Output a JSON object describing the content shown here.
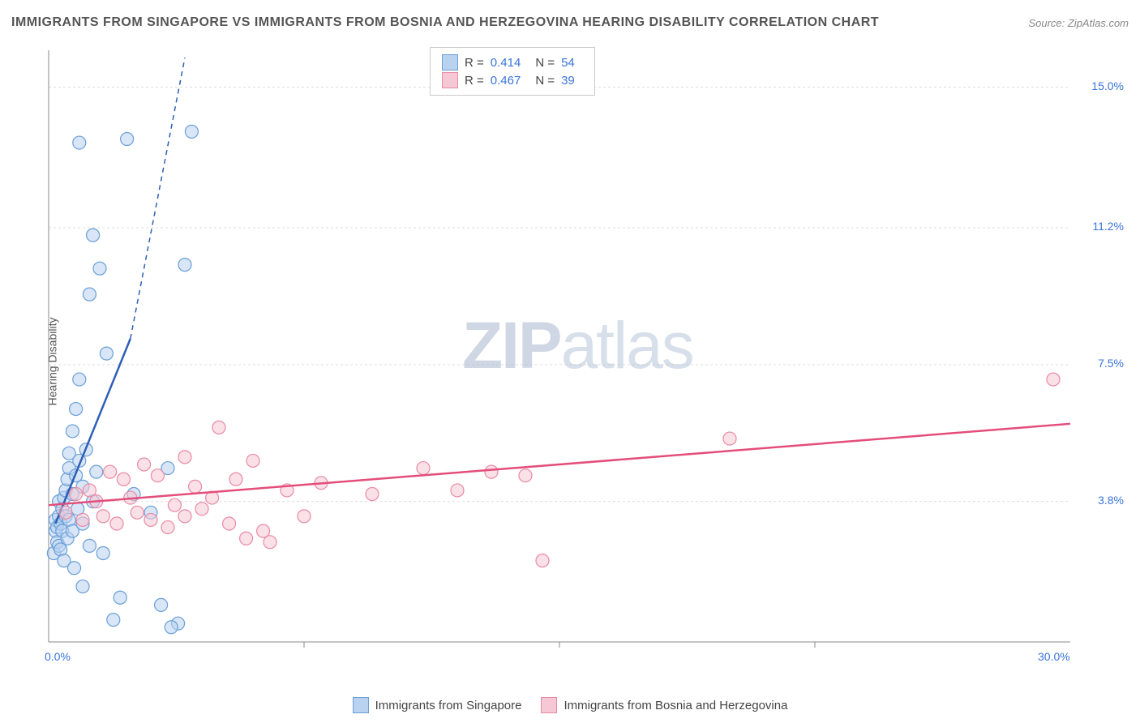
{
  "title": "IMMIGRANTS FROM SINGAPORE VS IMMIGRANTS FROM BOSNIA AND HERZEGOVINA HEARING DISABILITY CORRELATION CHART",
  "source": "Source: ZipAtlas.com",
  "y_axis_label": "Hearing Disability",
  "watermark_bold": "ZIP",
  "watermark_light": "atlas",
  "chart": {
    "type": "scatter",
    "background_color": "#ffffff",
    "grid_color": "#dddddd",
    "axis_color": "#888888",
    "xlim": [
      0,
      30
    ],
    "ylim": [
      0,
      16
    ],
    "y_ticks": [
      {
        "v": 3.8,
        "label": "3.8%"
      },
      {
        "v": 7.5,
        "label": "7.5%"
      },
      {
        "v": 11.2,
        "label": "11.2%"
      },
      {
        "v": 15.0,
        "label": "15.0%"
      }
    ],
    "x_ticks": [
      {
        "v": 0,
        "label": "0.0%"
      },
      {
        "v": 30,
        "label": "30.0%"
      }
    ],
    "x_minor_ticks": [
      7.5,
      15,
      22.5
    ],
    "marker_radius": 8,
    "marker_opacity": 0.55,
    "series": [
      {
        "name": "Immigrants from Singapore",
        "color_fill": "#b8d2f0",
        "color_stroke": "#6a9fd8",
        "line_color": "#2e5fb5",
        "r_label": "R =",
        "r_value": "0.414",
        "n_label": "N =",
        "n_value": "54",
        "trend": {
          "x1": 0.2,
          "y1": 3.2,
          "x2": 4.0,
          "y2": 15.8,
          "solid_to_x": 2.4,
          "solid_to_y": 8.2
        },
        "points": [
          [
            0.15,
            2.4
          ],
          [
            0.2,
            3.0
          ],
          [
            0.2,
            3.3
          ],
          [
            0.25,
            2.7
          ],
          [
            0.25,
            3.1
          ],
          [
            0.3,
            2.6
          ],
          [
            0.3,
            3.4
          ],
          [
            0.3,
            3.8
          ],
          [
            0.35,
            2.5
          ],
          [
            0.35,
            3.2
          ],
          [
            0.4,
            3.0
          ],
          [
            0.4,
            3.6
          ],
          [
            0.45,
            2.2
          ],
          [
            0.45,
            3.9
          ],
          [
            0.5,
            3.4
          ],
          [
            0.5,
            4.1
          ],
          [
            0.55,
            2.8
          ],
          [
            0.55,
            4.4
          ],
          [
            0.6,
            3.3
          ],
          [
            0.6,
            4.7
          ],
          [
            0.6,
            5.1
          ],
          [
            0.7,
            3.0
          ],
          [
            0.7,
            4.0
          ],
          [
            0.7,
            5.7
          ],
          [
            0.75,
            2.0
          ],
          [
            0.8,
            4.5
          ],
          [
            0.8,
            6.3
          ],
          [
            0.85,
            3.6
          ],
          [
            0.9,
            4.9
          ],
          [
            0.9,
            7.1
          ],
          [
            1.0,
            1.5
          ],
          [
            1.0,
            3.2
          ],
          [
            1.0,
            4.2
          ],
          [
            1.1,
            5.2
          ],
          [
            1.2,
            2.6
          ],
          [
            1.2,
            9.4
          ],
          [
            1.3,
            3.8
          ],
          [
            1.4,
            4.6
          ],
          [
            1.5,
            10.1
          ],
          [
            1.6,
            2.4
          ],
          [
            1.7,
            7.8
          ],
          [
            1.9,
            0.6
          ],
          [
            2.1,
            1.2
          ],
          [
            2.3,
            13.6
          ],
          [
            2.5,
            4.0
          ],
          [
            3.0,
            3.5
          ],
          [
            3.3,
            1.0
          ],
          [
            3.5,
            4.7
          ],
          [
            3.8,
            0.5
          ],
          [
            4.0,
            10.2
          ],
          [
            4.2,
            13.8
          ],
          [
            1.3,
            11.0
          ],
          [
            0.9,
            13.5
          ],
          [
            3.6,
            0.4
          ]
        ]
      },
      {
        "name": "Immigrants from Bosnia and Herzegovina",
        "color_fill": "#f6c7d4",
        "color_stroke": "#e98aa5",
        "line_color": "#e44d7a",
        "r_label": "R =",
        "r_value": "0.467",
        "n_label": "N =",
        "n_value": "39",
        "trend": {
          "x1": 0,
          "y1": 3.7,
          "x2": 30,
          "y2": 5.9
        },
        "points": [
          [
            0.5,
            3.5
          ],
          [
            0.8,
            4.0
          ],
          [
            1.0,
            3.3
          ],
          [
            1.2,
            4.1
          ],
          [
            1.4,
            3.8
          ],
          [
            1.6,
            3.4
          ],
          [
            1.8,
            4.6
          ],
          [
            2.0,
            3.2
          ],
          [
            2.2,
            4.4
          ],
          [
            2.4,
            3.9
          ],
          [
            2.6,
            3.5
          ],
          [
            2.8,
            4.8
          ],
          [
            3.0,
            3.3
          ],
          [
            3.2,
            4.5
          ],
          [
            3.5,
            3.1
          ],
          [
            3.7,
            3.7
          ],
          [
            4.0,
            5.0
          ],
          [
            4.0,
            3.4
          ],
          [
            4.3,
            4.2
          ],
          [
            4.5,
            3.6
          ],
          [
            4.8,
            3.9
          ],
          [
            5.0,
            5.8
          ],
          [
            5.3,
            3.2
          ],
          [
            5.5,
            4.4
          ],
          [
            5.8,
            2.8
          ],
          [
            6.0,
            4.9
          ],
          [
            6.3,
            3.0
          ],
          [
            6.5,
            2.7
          ],
          [
            7.0,
            4.1
          ],
          [
            7.5,
            3.4
          ],
          [
            8.0,
            4.3
          ],
          [
            9.5,
            4.0
          ],
          [
            11.0,
            4.7
          ],
          [
            12.0,
            4.1
          ],
          [
            13.0,
            4.6
          ],
          [
            14.5,
            2.2
          ],
          [
            20.0,
            5.5
          ],
          [
            29.5,
            7.1
          ],
          [
            14.0,
            4.5
          ]
        ]
      }
    ]
  }
}
